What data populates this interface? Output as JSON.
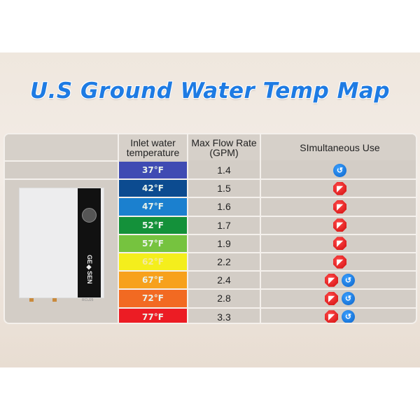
{
  "title": "U.S Ground Water Temp Map",
  "headers": {
    "temp": "Inlet water temperature",
    "flow": "Max Flow Rate (GPM)",
    "use": "SImultaneous Use"
  },
  "product": {
    "brand": "GE◆SEN",
    "model": "RCU25"
  },
  "rows": [
    {
      "temp": "37°F",
      "color": "#3f4bb3",
      "flow": "1.4",
      "icons": [
        "shower"
      ]
    },
    {
      "temp": "42°F",
      "color": "#0c4b90",
      "flow": "1.5",
      "icons": [
        "faucet"
      ]
    },
    {
      "temp": "47°F",
      "color": "#1b80cf",
      "flow": "1.6",
      "icons": [
        "faucet"
      ]
    },
    {
      "temp": "52°F",
      "color": "#14913a",
      "flow": "1.7",
      "icons": [
        "faucet"
      ]
    },
    {
      "temp": "57°F",
      "color": "#76c33f",
      "flow": "1.9",
      "icons": [
        "faucet"
      ]
    },
    {
      "temp": "62°F",
      "color": "#f4ee1c",
      "flow": "2.2",
      "icons": [
        "faucet"
      ]
    },
    {
      "temp": "67°F",
      "color": "#f7a11c",
      "flow": "2.4",
      "icons": [
        "faucet",
        "shower"
      ]
    },
    {
      "temp": "72°F",
      "color": "#f26a22",
      "flow": "2.8",
      "icons": [
        "faucet",
        "shower"
      ]
    },
    {
      "temp": "77°F",
      "color": "#ec1c24",
      "flow": "3.3",
      "icons": [
        "faucet",
        "shower"
      ]
    }
  ]
}
